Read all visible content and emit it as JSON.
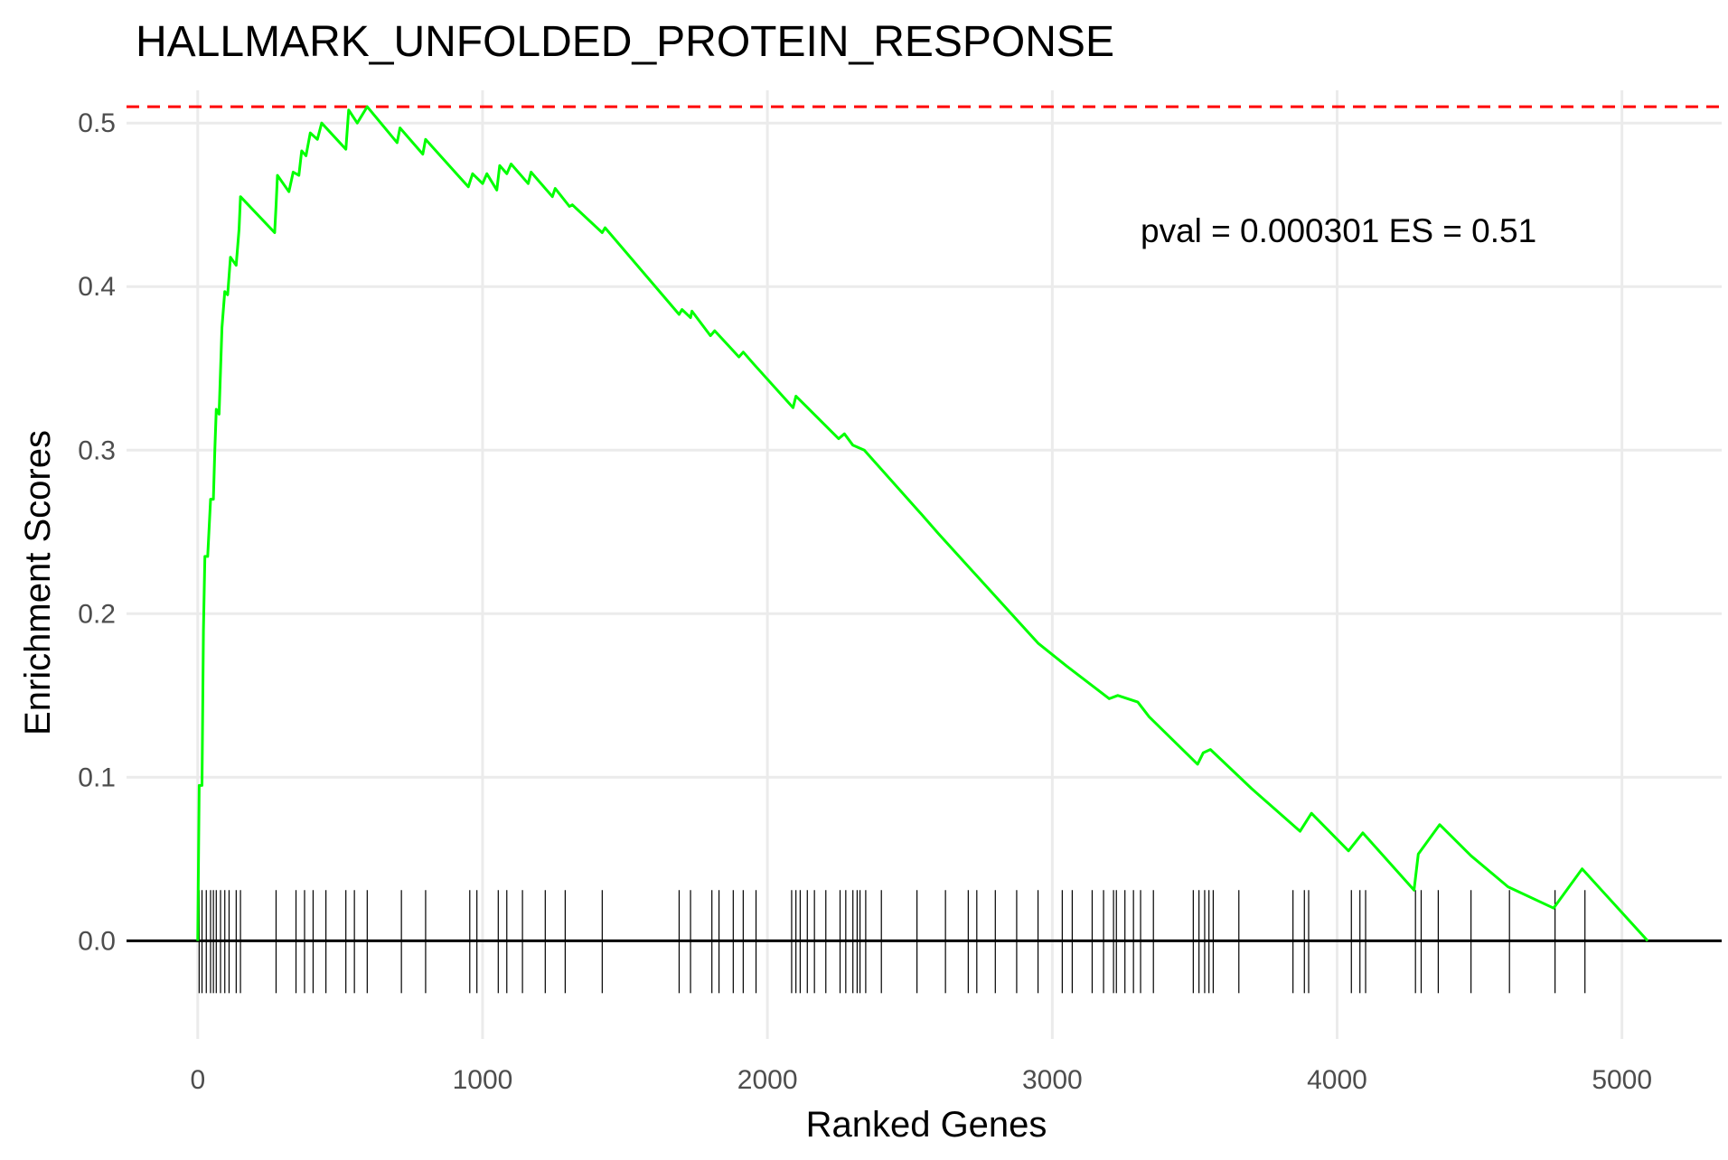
{
  "chart_data": {
    "type": "line",
    "title": "HALLMARK_UNFOLDED_PROTEIN_RESPONSE",
    "xlabel": "Ranked Genes",
    "ylabel": "Enrichment Scores",
    "annotation": "pval = 0.000301 ES = 0.51",
    "xlim": [
      -250,
      5350
    ],
    "ylim": [
      -0.06,
      0.52
    ],
    "x_ticks": [
      0,
      1000,
      2000,
      3000,
      4000,
      5000
    ],
    "x_tick_labels": [
      "0",
      "1000",
      "2000",
      "3000",
      "4000",
      "5000"
    ],
    "y_ticks": [
      0.0,
      0.1,
      0.2,
      0.3,
      0.4,
      0.5
    ],
    "y_tick_labels": [
      "0.0",
      "0.1",
      "0.2",
      "0.3",
      "0.4",
      "0.5"
    ],
    "max_es_line": 0.51,
    "grid": true,
    "colors": {
      "es_curve": "#00ff00",
      "max_es_line": "#ff0000",
      "zero_line": "#000000",
      "hit_marks": "#000000",
      "grid": "#ebebeb"
    },
    "series": [
      {
        "values": [
          [
            0,
            0
          ],
          [
            5,
            0.095
          ],
          [
            15,
            0.095
          ],
          [
            20,
            0.19
          ],
          [
            25,
            0.235
          ],
          [
            35,
            0.235
          ],
          [
            45,
            0.27
          ],
          [
            55,
            0.27
          ],
          [
            60,
            0.3
          ],
          [
            65,
            0.325
          ],
          [
            75,
            0.322
          ],
          [
            85,
            0.375
          ],
          [
            95,
            0.397
          ],
          [
            105,
            0.395
          ],
          [
            115,
            0.418
          ],
          [
            135,
            0.413
          ],
          [
            145,
            0.435
          ],
          [
            150,
            0.455
          ],
          [
            270,
            0.433
          ],
          [
            275,
            0.45
          ],
          [
            280,
            0.468
          ],
          [
            320,
            0.458
          ],
          [
            335,
            0.47
          ],
          [
            355,
            0.468
          ],
          [
            365,
            0.483
          ],
          [
            380,
            0.48
          ],
          [
            395,
            0.494
          ],
          [
            420,
            0.49
          ],
          [
            435,
            0.5
          ],
          [
            520,
            0.484
          ],
          [
            530,
            0.508
          ],
          [
            560,
            0.5
          ],
          [
            595,
            0.51
          ],
          [
            700,
            0.488
          ],
          [
            710,
            0.497
          ],
          [
            790,
            0.481
          ],
          [
            800,
            0.49
          ],
          [
            950,
            0.461
          ],
          [
            965,
            0.469
          ],
          [
            1000,
            0.463
          ],
          [
            1015,
            0.469
          ],
          [
            1050,
            0.459
          ],
          [
            1060,
            0.474
          ],
          [
            1085,
            0.469
          ],
          [
            1100,
            0.475
          ],
          [
            1160,
            0.463
          ],
          [
            1170,
            0.47
          ],
          [
            1245,
            0.455
          ],
          [
            1255,
            0.46
          ],
          [
            1305,
            0.449
          ],
          [
            1315,
            0.45
          ],
          [
            1420,
            0.433
          ],
          [
            1430,
            0.436
          ],
          [
            1690,
            0.383
          ],
          [
            1700,
            0.386
          ],
          [
            1730,
            0.381
          ],
          [
            1735,
            0.385
          ],
          [
            1800,
            0.37
          ],
          [
            1815,
            0.373
          ],
          [
            1900,
            0.357
          ],
          [
            1915,
            0.36
          ],
          [
            1950,
            0.353
          ],
          [
            2090,
            0.326
          ],
          [
            2100,
            0.333
          ],
          [
            2250,
            0.307
          ],
          [
            2270,
            0.31
          ],
          [
            2300,
            0.303
          ],
          [
            2340,
            0.3
          ],
          [
            2540,
            0.261
          ],
          [
            2600,
            0.249
          ],
          [
            2720,
            0.226
          ],
          [
            2950,
            0.182
          ],
          [
            3050,
            0.168
          ],
          [
            3200,
            0.148
          ],
          [
            3230,
            0.15
          ],
          [
            3300,
            0.146
          ],
          [
            3340,
            0.137
          ],
          [
            3510,
            0.108
          ],
          [
            3530,
            0.115
          ],
          [
            3555,
            0.117
          ],
          [
            3700,
            0.093
          ],
          [
            3870,
            0.067
          ],
          [
            3910,
            0.078
          ],
          [
            4040,
            0.055
          ],
          [
            4090,
            0.066
          ],
          [
            4270,
            0.031
          ],
          [
            4285,
            0.053
          ],
          [
            4360,
            0.071
          ],
          [
            4470,
            0.052
          ],
          [
            4600,
            0.033
          ],
          [
            4760,
            0.02
          ],
          [
            4860,
            0.044
          ],
          [
            5090,
            0.0
          ]
        ]
      }
    ],
    "hit_positions": [
      5,
      15,
      30,
      45,
      55,
      65,
      80,
      95,
      110,
      135,
      150,
      275,
      345,
      375,
      405,
      450,
      520,
      550,
      595,
      715,
      800,
      955,
      980,
      1055,
      1085,
      1140,
      1220,
      1290,
      1420,
      1690,
      1730,
      1805,
      1830,
      1880,
      1915,
      1960,
      2085,
      2100,
      2115,
      2140,
      2165,
      2205,
      2255,
      2275,
      2300,
      2315,
      2325,
      2345,
      2400,
      2525,
      2625,
      2705,
      2735,
      2800,
      2875,
      2950,
      3035,
      3070,
      3140,
      3180,
      3215,
      3225,
      3255,
      3285,
      3310,
      3355,
      3495,
      3515,
      3535,
      3550,
      3565,
      3655,
      3845,
      3885,
      3900,
      4050,
      4080,
      4100,
      4275,
      4295,
      4355,
      4470,
      4605,
      4765,
      4870
    ]
  }
}
